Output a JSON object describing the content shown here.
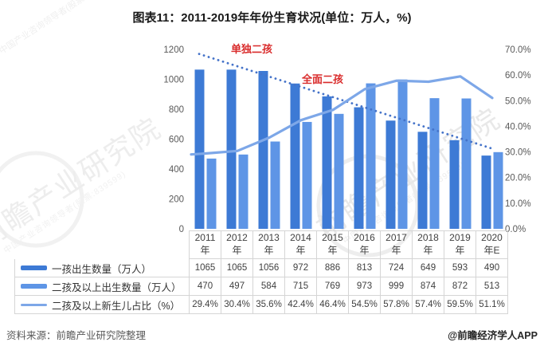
{
  "title": "图表11：2011-2019年年份生育状况(单位：万人，%)",
  "footer": {
    "source": "资料来源：前瞻产业研究院整理",
    "credit": "@前瞻经济学人APP"
  },
  "watermark": {
    "big": "前瞻产业研究院",
    "small": "中国产业咨询领导者(股票:839599)"
  },
  "chart_data": {
    "type": "bar",
    "title": "图表11：2011-2019年年份生育状况(单位：万人，%)",
    "categories": [
      "2011年",
      "2012年",
      "2013年",
      "2014年",
      "2015年",
      "2016年",
      "2017年",
      "2018年",
      "2019年",
      "2020年E"
    ],
    "series": [
      {
        "name": "一孩出生数量（万人）",
        "type": "bar",
        "axis": "left",
        "color": "#3d7ad5",
        "values": [
          1065,
          1065,
          1056,
          972,
          886,
          813,
          724,
          649,
          593,
          490
        ]
      },
      {
        "name": "二孩及以上出生数量（万人）",
        "type": "bar",
        "axis": "left",
        "color": "#5e95e6",
        "values": [
          470,
          497,
          584,
          715,
          769,
          973,
          999,
          874,
          872,
          513
        ]
      },
      {
        "name": "二孩及以上新生儿占比（%）",
        "type": "line",
        "axis": "right",
        "color": "#7da7e8",
        "values": [
          29.4,
          30.4,
          35.6,
          42.4,
          46.4,
          54.5,
          57.8,
          57.4,
          59.5,
          51.1
        ],
        "display": [
          "29.4%",
          "30.4%",
          "35.6%",
          "42.4%",
          "46.4%",
          "54.5%",
          "57.8%",
          "57.4%",
          "59.5%",
          "51.1%"
        ]
      }
    ],
    "left_axis": {
      "min": 0,
      "max": 1200,
      "step": 200,
      "ticks": [
        "0",
        "200",
        "400",
        "600",
        "800",
        "1000",
        "1200"
      ]
    },
    "right_axis": {
      "min": 0,
      "max": 70,
      "step": 10,
      "ticks": [
        "0.0%",
        "10.0%",
        "20.0%",
        "30.0%",
        "40.0%",
        "50.0%",
        "60.0%",
        "70.0%"
      ]
    },
    "annotations": [
      {
        "text": "单独二孩",
        "x": 316,
        "y": 66
      },
      {
        "text": "全面二孩",
        "x": 405,
        "y": 104
      }
    ],
    "annotation_color": "#d92b2b",
    "trendline": {
      "style": "dotted",
      "color": "#4573c9",
      "from": {
        "cat": 0.3,
        "value": 1170
      },
      "to": {
        "cat": 9.45,
        "value": 540
      }
    },
    "grid": "off",
    "legend_position": "table-left"
  }
}
